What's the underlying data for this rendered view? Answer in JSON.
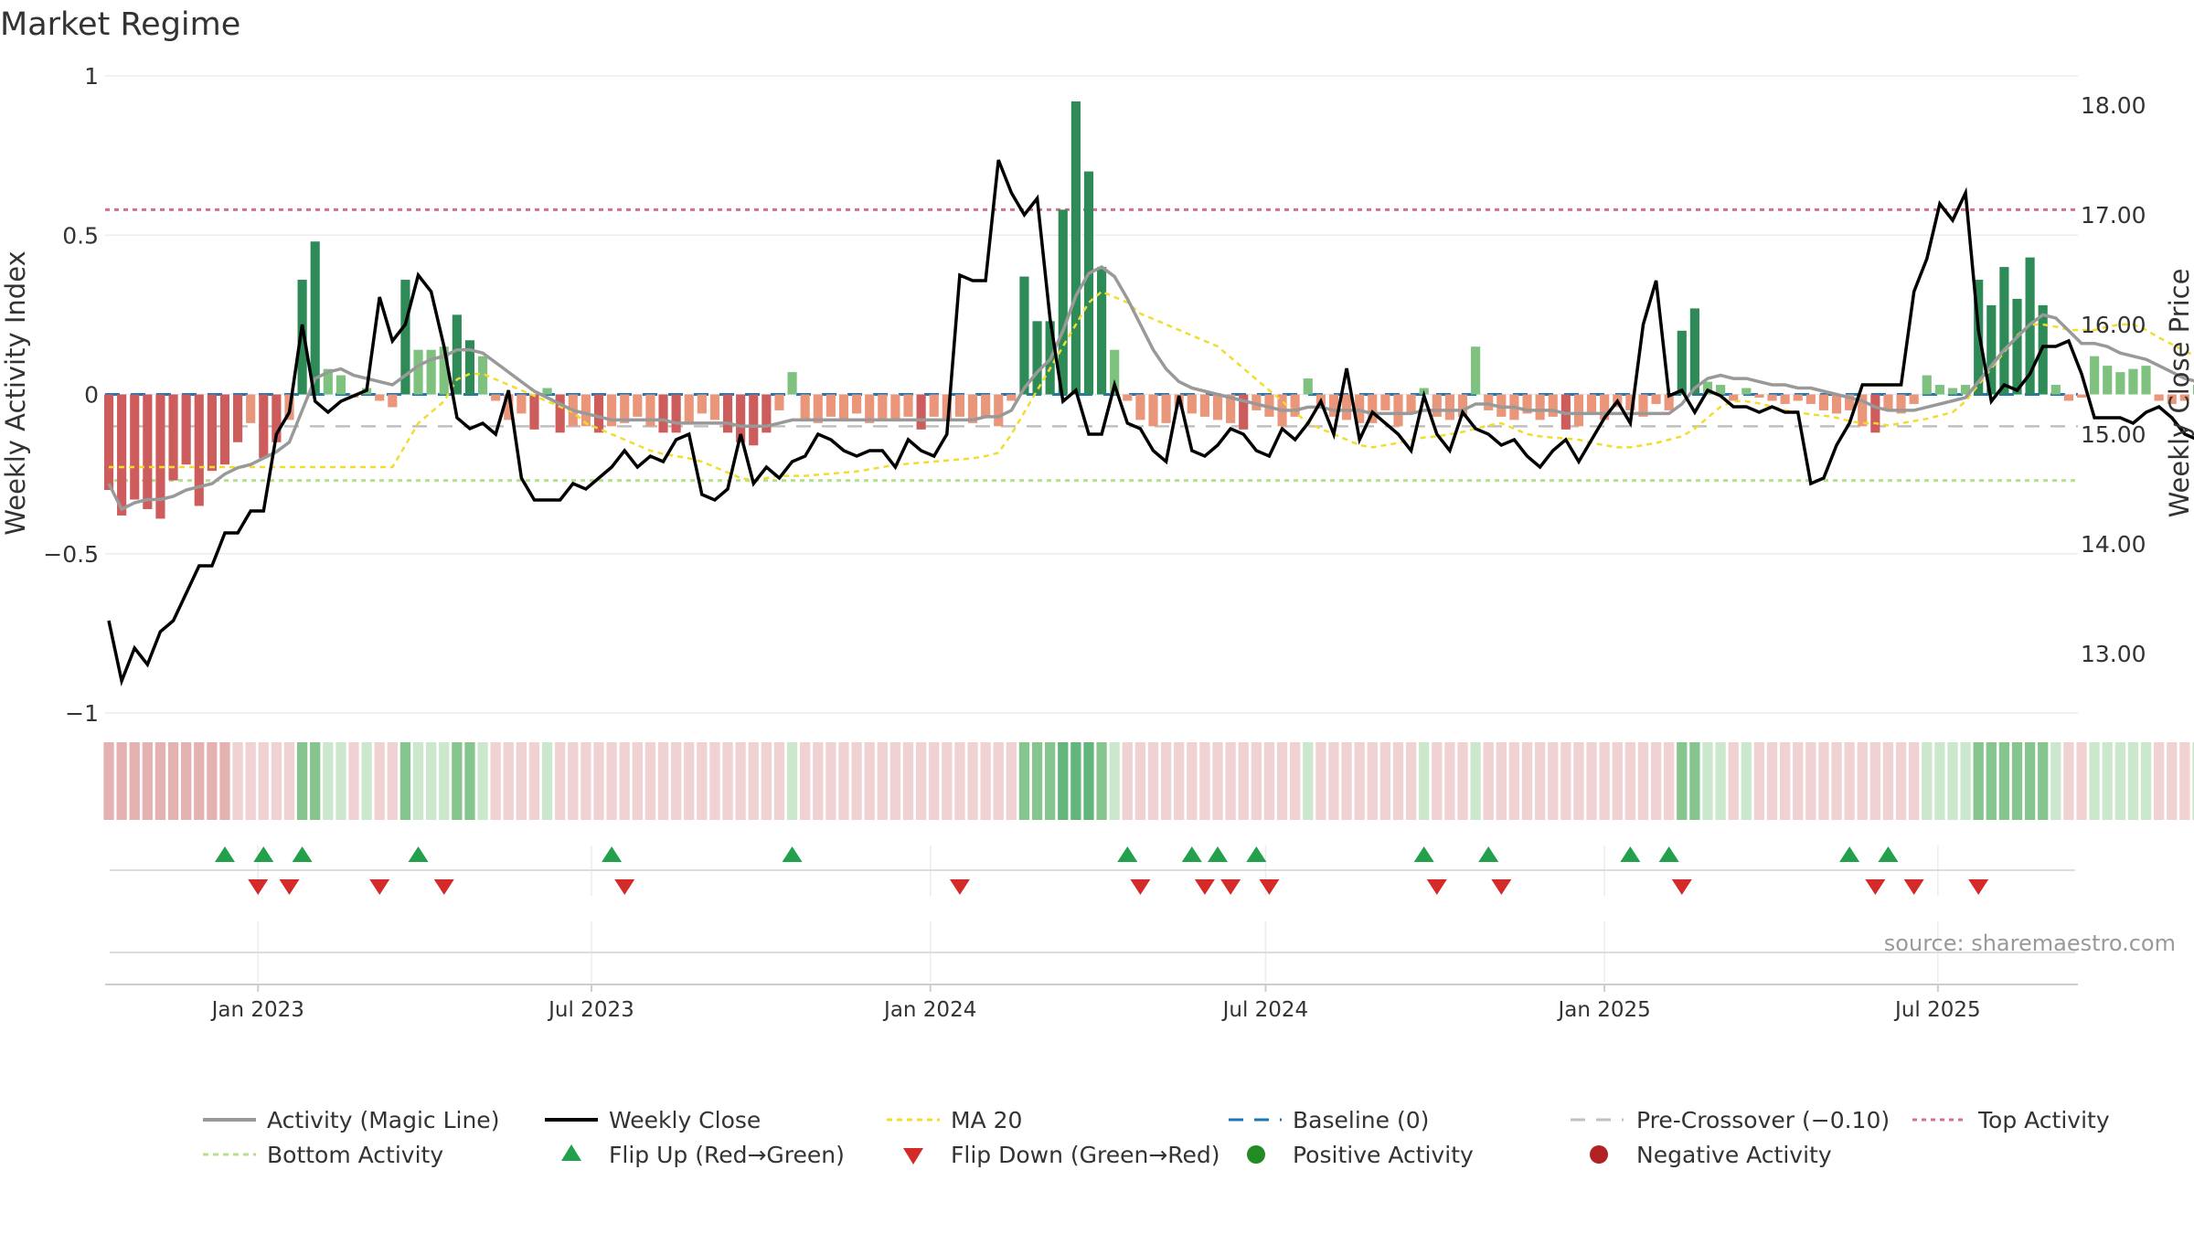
{
  "title": "Market Regime",
  "source": "source: sharemaestro.com",
  "colors": {
    "green_dark": "#2e8b57",
    "green_light": "#7fc17f",
    "red_dark": "#cd5c5c",
    "red_light": "#e9967a",
    "black": "#000000",
    "gray": "#999999",
    "gold": "#f2dc2e",
    "baseline": "#1f77b4",
    "pre": "#c0c0c0",
    "top": "#d6708a",
    "bottom": "#b4e08c",
    "flip_up": "#22a04b",
    "flip_down": "#d42a2a"
  },
  "chart_data": {
    "type": "bar",
    "title": "Market Regime",
    "ylabel_left": "Weekly Activity Index",
    "ylabel_right": "Weekly Close Price",
    "y_left_ticks": [
      "1",
      "0.5",
      "0",
      "−0.5",
      "−1"
    ],
    "y_left_range": [
      -1,
      1
    ],
    "y_right_ticks": [
      "18.00",
      "17.00",
      "16.00",
      "15.00",
      "14.00",
      "13.00"
    ],
    "y_right_range": [
      12.38,
      18.2
    ],
    "x_range": [
      "2022-10-10",
      "2025-09-15"
    ],
    "x_ticks": [
      {
        "date": "2023-01-01",
        "label": "Jan 2023"
      },
      {
        "date": "2023-07-01",
        "label": "Jul 2023"
      },
      {
        "date": "2024-01-01",
        "label": "Jan 2024"
      },
      {
        "date": "2024-07-01",
        "label": "Jul 2024"
      },
      {
        "date": "2025-01-01",
        "label": "Jan 2025"
      },
      {
        "date": "2025-07-01",
        "label": "Jul 2025"
      }
    ],
    "start_date": "2022-10-12",
    "top_activity": 0.58,
    "bottom_activity": -0.27,
    "pre_crossover": -0.1,
    "activity": [
      -0.3,
      -0.38,
      -0.33,
      -0.36,
      -0.39,
      -0.27,
      -0.22,
      -0.35,
      -0.24,
      -0.22,
      -0.15,
      -0.09,
      -0.2,
      -0.15,
      -0.08,
      0.36,
      0.48,
      0.08,
      0.06,
      -0.01,
      0.02,
      -0.02,
      -0.04,
      0.36,
      0.14,
      0.14,
      0.15,
      0.25,
      0.17,
      0.12,
      -0.02,
      -0.08,
      -0.06,
      -0.11,
      0.02,
      -0.12,
      -0.1,
      -0.1,
      -0.12,
      -0.1,
      -0.09,
      -0.07,
      -0.1,
      -0.12,
      -0.12,
      -0.09,
      -0.06,
      -0.08,
      -0.12,
      -0.15,
      -0.16,
      -0.12,
      -0.05,
      0.07,
      -0.08,
      -0.09,
      -0.07,
      -0.08,
      -0.06,
      -0.09,
      -0.08,
      -0.08,
      -0.07,
      -0.11,
      -0.07,
      -0.08,
      -0.07,
      -0.09,
      -0.07,
      -0.1,
      -0.02,
      0.37,
      0.23,
      0.23,
      0.58,
      0.92,
      0.7,
      0.4,
      0.14,
      -0.02,
      -0.08,
      -0.1,
      -0.09,
      -0.04,
      -0.06,
      -0.07,
      -0.08,
      -0.09,
      -0.11,
      -0.05,
      -0.07,
      -0.1,
      -0.07,
      0.05,
      -0.04,
      -0.07,
      -0.08,
      -0.09,
      -0.09,
      -0.05,
      -0.1,
      -0.06,
      0.02,
      -0.07,
      -0.08,
      -0.07,
      0.15,
      -0.05,
      -0.07,
      -0.08,
      -0.06,
      -0.08,
      -0.07,
      -0.11,
      -0.1,
      -0.06,
      -0.08,
      -0.04,
      -0.05,
      -0.07,
      -0.03,
      -0.05,
      0.2,
      0.27,
      0.04,
      0.03,
      -0.02,
      0.02,
      -0.01,
      -0.02,
      -0.03,
      -0.02,
      -0.03,
      -0.05,
      -0.06,
      -0.05,
      -0.1,
      -0.12,
      -0.05,
      -0.06,
      -0.03,
      0.06,
      0.03,
      0.02,
      0.03,
      0.36,
      0.28,
      0.4,
      0.3,
      0.43,
      0.28,
      0.03,
      -0.02,
      -0.01,
      0.12,
      0.09,
      0.07,
      0.08,
      0.09,
      -0.02,
      -0.03,
      -0.02,
      0.03,
      0.04,
      0.03,
      0.02,
      0.01,
      0.03,
      -0.04,
      -0.02,
      -0.03,
      -0.04,
      -0.05,
      -0.06,
      -0.04,
      -0.05,
      -0.05,
      -0.05
    ],
    "magic_line": [
      -0.28,
      -0.36,
      -0.34,
      -0.33,
      -0.33,
      -0.32,
      -0.3,
      -0.29,
      -0.28,
      -0.25,
      -0.23,
      -0.22,
      -0.2,
      -0.18,
      -0.15,
      -0.05,
      0.05,
      0.07,
      0.08,
      0.06,
      0.05,
      0.04,
      0.03,
      0.06,
      0.09,
      0.11,
      0.12,
      0.14,
      0.14,
      0.13,
      0.1,
      0.07,
      0.04,
      0.01,
      -0.01,
      -0.03,
      -0.05,
      -0.06,
      -0.07,
      -0.08,
      -0.08,
      -0.08,
      -0.08,
      -0.08,
      -0.09,
      -0.09,
      -0.09,
      -0.09,
      -0.09,
      -0.1,
      -0.1,
      -0.1,
      -0.09,
      -0.08,
      -0.08,
      -0.08,
      -0.08,
      -0.08,
      -0.08,
      -0.08,
      -0.08,
      -0.08,
      -0.08,
      -0.08,
      -0.08,
      -0.08,
      -0.08,
      -0.08,
      -0.07,
      -0.07,
      -0.05,
      0.02,
      0.07,
      0.11,
      0.2,
      0.31,
      0.38,
      0.4,
      0.37,
      0.3,
      0.22,
      0.14,
      0.08,
      0.04,
      0.02,
      0.01,
      0.0,
      -0.01,
      -0.02,
      -0.03,
      -0.04,
      -0.05,
      -0.05,
      -0.04,
      -0.04,
      -0.05,
      -0.05,
      -0.05,
      -0.06,
      -0.06,
      -0.06,
      -0.06,
      -0.05,
      -0.05,
      -0.05,
      -0.05,
      -0.03,
      -0.03,
      -0.04,
      -0.04,
      -0.05,
      -0.05,
      -0.05,
      -0.06,
      -0.06,
      -0.06,
      -0.06,
      -0.06,
      -0.06,
      -0.06,
      -0.06,
      -0.06,
      -0.03,
      0.02,
      0.05,
      0.06,
      0.05,
      0.05,
      0.04,
      0.03,
      0.03,
      0.02,
      0.02,
      0.01,
      0.0,
      -0.01,
      -0.02,
      -0.04,
      -0.05,
      -0.05,
      -0.05,
      -0.04,
      -0.03,
      -0.02,
      -0.01,
      0.04,
      0.09,
      0.14,
      0.18,
      0.22,
      0.25,
      0.24,
      0.2,
      0.16,
      0.16,
      0.15,
      0.13,
      0.12,
      0.11,
      0.09,
      0.07,
      0.05,
      0.04,
      0.04,
      0.03,
      0.03,
      0.03,
      0.02,
      0.02,
      0.01,
      0.0,
      -0.01,
      -0.02,
      -0.02,
      -0.03,
      -0.03,
      -0.04,
      -0.04
    ],
    "ma20_price": [
      14.7,
      14.7,
      14.7,
      14.7,
      14.7,
      14.7,
      14.7,
      14.7,
      14.7,
      14.7,
      14.7,
      14.7,
      14.7,
      14.7,
      14.7,
      14.7,
      14.7,
      14.7,
      14.7,
      14.7,
      14.7,
      14.7,
      14.7,
      14.9,
      15.1,
      15.2,
      15.3,
      15.5,
      15.55,
      15.55,
      15.5,
      15.45,
      15.4,
      15.35,
      15.3,
      15.25,
      15.2,
      15.1,
      15.05,
      15.0,
      14.95,
      14.9,
      14.85,
      14.82,
      14.8,
      14.78,
      14.75,
      14.7,
      14.65,
      14.6,
      14.58,
      14.6,
      14.62,
      14.62,
      14.62,
      14.63,
      14.64,
      14.65,
      14.66,
      14.68,
      14.7,
      14.72,
      14.73,
      14.74,
      14.75,
      14.76,
      14.77,
      14.78,
      14.8,
      14.83,
      15.0,
      15.2,
      15.4,
      15.6,
      15.8,
      16.0,
      16.2,
      16.3,
      16.25,
      16.2,
      16.1,
      16.05,
      16.0,
      15.95,
      15.9,
      15.85,
      15.8,
      15.7,
      15.6,
      15.5,
      15.4,
      15.3,
      15.2,
      15.1,
      15.05,
      15.0,
      14.95,
      14.9,
      14.88,
      14.9,
      14.92,
      14.95,
      14.97,
      14.98,
      15.0,
      15.02,
      15.05,
      15.08,
      15.1,
      15.05,
      15.0,
      14.98,
      14.97,
      14.96,
      14.95,
      14.92,
      14.9,
      14.88,
      14.88,
      14.9,
      14.92,
      14.95,
      14.98,
      15.05,
      15.15,
      15.25,
      15.3,
      15.3,
      15.28,
      15.25,
      15.22,
      15.2,
      15.18,
      15.17,
      15.15,
      15.12,
      15.1,
      15.1,
      15.08,
      15.1,
      15.12,
      15.14,
      15.17,
      15.2,
      15.3,
      15.45,
      15.6,
      15.75,
      15.9,
      16.0,
      16.0,
      15.98,
      15.95,
      15.95,
      15.95,
      15.98,
      16.0,
      16.0,
      15.95,
      15.88,
      15.82,
      15.76,
      15.7,
      15.64,
      15.58,
      15.52,
      15.48,
      15.44,
      15.4,
      15.35,
      15.3,
      15.25,
      15.2,
      15.15,
      15.12,
      15.1,
      15.08,
      15.05
    ],
    "weekly_close": [
      13.3,
      12.75,
      13.05,
      12.9,
      13.2,
      13.3,
      13.55,
      13.8,
      13.8,
      14.1,
      14.1,
      14.3,
      14.3,
      15.0,
      15.2,
      16.0,
      15.3,
      15.2,
      15.3,
      15.35,
      15.4,
      16.25,
      15.85,
      16.0,
      16.45,
      16.3,
      15.8,
      15.15,
      15.05,
      15.1,
      15.0,
      15.4,
      14.6,
      14.4,
      14.4,
      14.4,
      14.55,
      14.5,
      14.6,
      14.7,
      14.85,
      14.7,
      14.8,
      14.75,
      14.95,
      15.0,
      14.45,
      14.4,
      14.5,
      15.0,
      14.55,
      14.7,
      14.6,
      14.75,
      14.8,
      15.0,
      14.95,
      14.85,
      14.8,
      14.85,
      14.85,
      14.7,
      14.95,
      14.85,
      14.8,
      15.0,
      16.45,
      16.4,
      16.4,
      17.5,
      17.2,
      17.0,
      17.15,
      16.05,
      15.3,
      15.4,
      15.0,
      15.0,
      15.45,
      15.1,
      15.05,
      14.85,
      14.75,
      15.35,
      14.85,
      14.8,
      14.9,
      15.05,
      15.0,
      14.85,
      14.8,
      15.05,
      14.95,
      15.1,
      15.3,
      15.0,
      15.6,
      14.95,
      15.2,
      15.1,
      15.0,
      14.85,
      15.35,
      15.0,
      14.85,
      15.2,
      15.05,
      15.0,
      14.9,
      14.95,
      14.8,
      14.7,
      14.85,
      14.95,
      14.75,
      14.95,
      15.15,
      15.3,
      15.1,
      16.0,
      16.4,
      15.35,
      15.4,
      15.2,
      15.4,
      15.35,
      15.25,
      15.25,
      15.2,
      15.25,
      15.2,
      15.2,
      14.55,
      14.6,
      14.9,
      15.1,
      15.45,
      15.45,
      15.45,
      15.45,
      16.3,
      16.6,
      17.1,
      16.95,
      17.2,
      15.95,
      15.3,
      15.45,
      15.4,
      15.55,
      15.8,
      15.8,
      15.85,
      15.55,
      15.15,
      15.15,
      15.15,
      15.1,
      15.2,
      15.25,
      15.15,
      15.0,
      14.95,
      14.95,
      14.8,
      15.0,
      15.05,
      15.1,
      15.15,
      15.15
    ]
  },
  "signals": {
    "flip_up_dates": [
      "2022-12-14",
      "2023-01-04",
      "2023-01-25",
      "2023-03-29",
      "2023-07-12",
      "2023-10-18",
      "2024-04-17",
      "2024-05-22",
      "2024-06-05",
      "2024-06-26",
      "2024-09-25",
      "2024-10-30",
      "2025-01-15",
      "2025-02-05",
      "2025-05-14",
      "2025-06-04"
    ],
    "flip_down_dates": [
      "2023-01-01",
      "2023-01-18",
      "2023-03-08",
      "2023-04-12",
      "2023-07-19",
      "2024-01-17",
      "2024-04-24",
      "2024-05-29",
      "2024-06-12",
      "2024-07-03",
      "2024-10-02",
      "2024-11-06",
      "2025-02-12",
      "2025-05-28",
      "2025-06-18",
      "2025-07-23"
    ]
  },
  "legend": {
    "magic": "Activity (Magic Line)",
    "close": "Weekly Close",
    "ma20": "MA 20",
    "baseline": "Baseline (0)",
    "pre": "Pre-Crossover (−0.10)",
    "top": "Top Activity",
    "bottom": "Bottom Activity",
    "flip_up": "Flip Up (Red→Green)",
    "flip_down": "Flip Down (Green→Red)",
    "positive": "Positive Activity",
    "negative": "Negative Activity"
  }
}
